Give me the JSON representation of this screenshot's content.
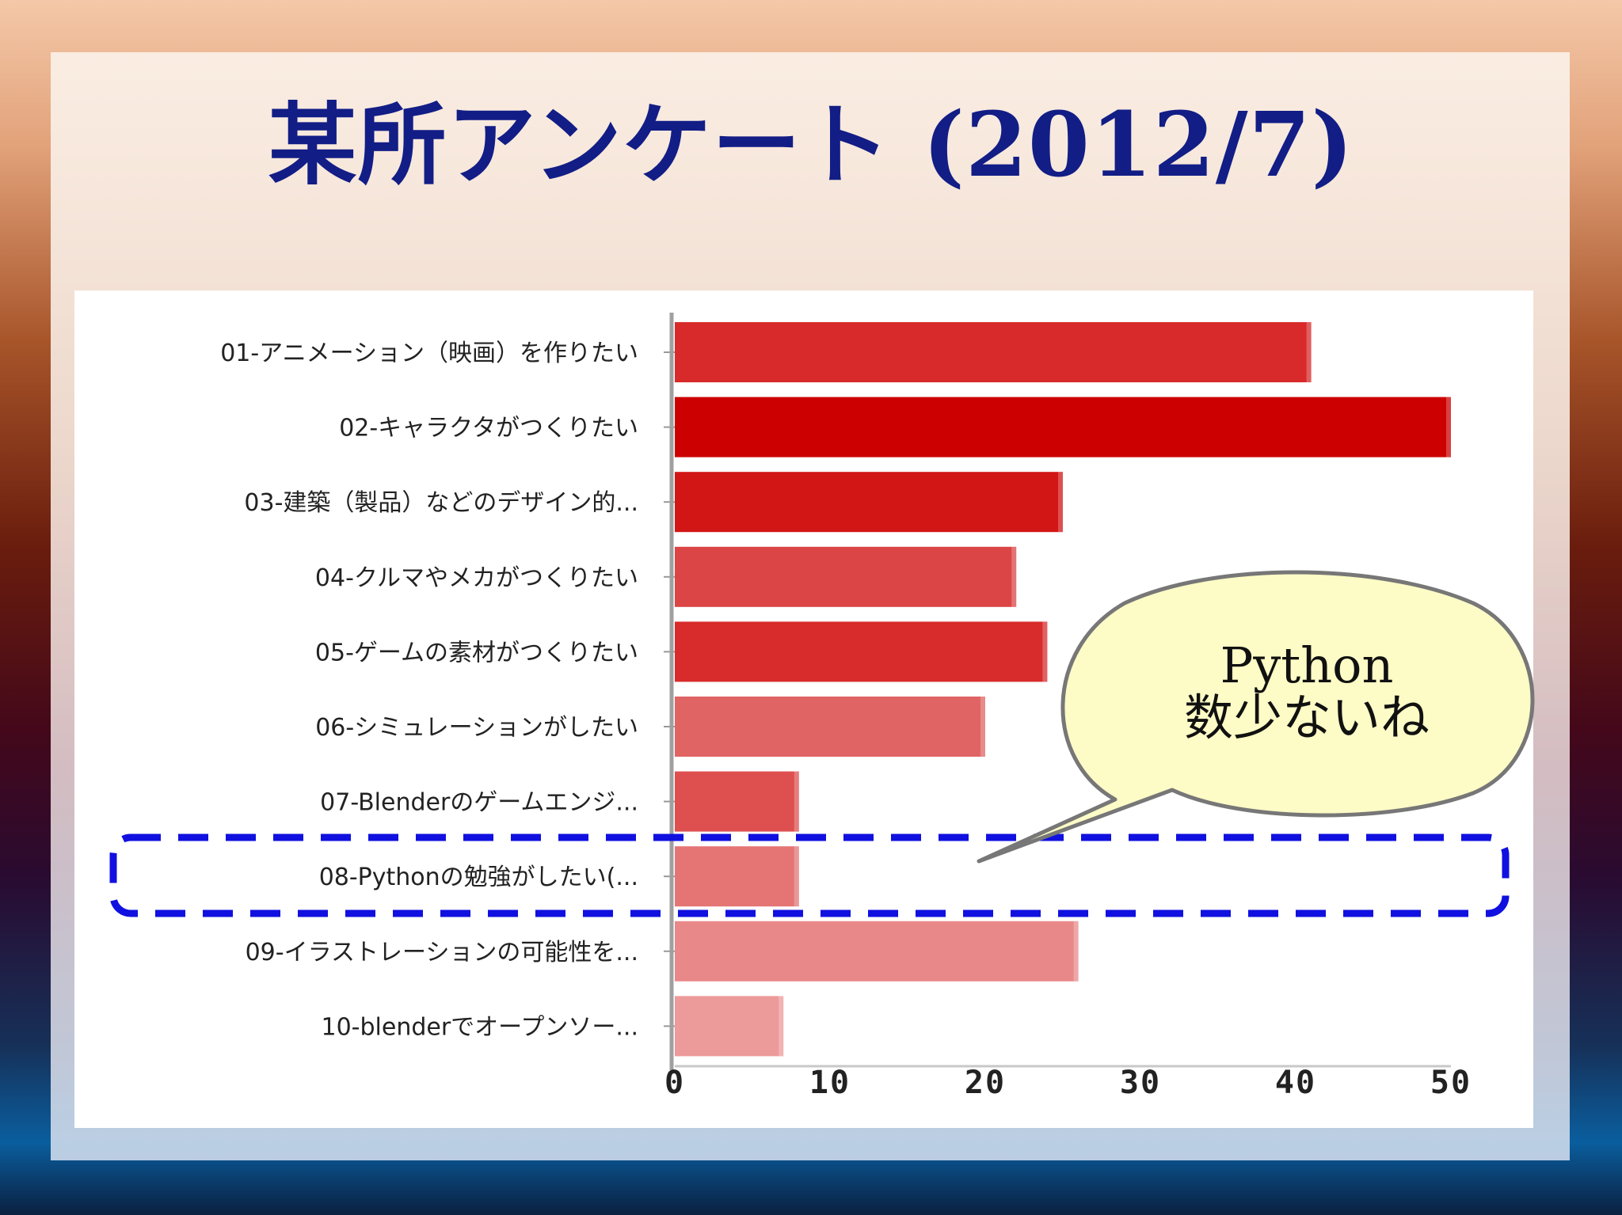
{
  "slide": {
    "title": "某所アンケート (2012/7)"
  },
  "callout": {
    "line1": "Python",
    "line2": "数少ないね"
  },
  "chart_data": {
    "type": "bar",
    "orientation": "horizontal",
    "categories": [
      "01-アニメーション（映画）を作りたい",
      "02-キャラクタがつくりたい",
      "03-建築（製品）などのデザイン的...",
      "04-クルマやメカがつくりたい",
      "05-ゲームの素材がつくりたい",
      "06-シミュレーションがしたい",
      "07-Blenderのゲームエンジ...",
      "08-Pythonの勉強がしたい(...",
      "09-イラストレーションの可能性を...",
      "10-blenderでオープンソー..."
    ],
    "values": [
      41,
      50,
      25,
      22,
      24,
      20,
      8,
      8,
      26,
      7
    ],
    "bar_colors": [
      "#d82a2a",
      "#cc0000",
      "#d21616",
      "#db4545",
      "#d82b2b",
      "#e06464",
      "#de5050",
      "#e57575",
      "#e98888",
      "#ec9a9a"
    ],
    "xlim": [
      0,
      50
    ],
    "xticks": [
      "0",
      "10",
      "20",
      "30",
      "40",
      "50"
    ],
    "highlighted_category_index": 7,
    "highlight_color": "#1010e0"
  }
}
